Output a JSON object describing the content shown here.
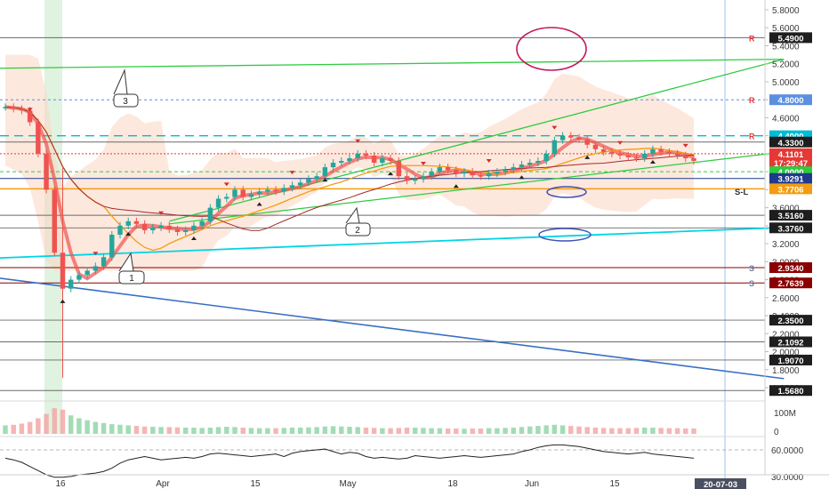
{
  "chart_data": [
    {
      "type": "candlestick",
      "price_axis_ticks": [
        "5.8000",
        "5.6000",
        "5.4000",
        "5.2000",
        "5.0000",
        "4.8000",
        "4.6000",
        "4.4000",
        "4.2000",
        "4.0000",
        "3.8000",
        "3.6000",
        "3.4000",
        "3.2000",
        "3.0000",
        "2.8000",
        "2.6000",
        "2.4000",
        "2.2000",
        "2.0000",
        "1.8000",
        "1.6000"
      ],
      "ylim": [
        1.55,
        5.9
      ],
      "date_axis_ticks": [
        "16",
        "Apr",
        "15",
        "May",
        "18",
        "Jun",
        "15"
      ],
      "date_axis_cursor_label": "20-07-03",
      "price_tags": [
        {
          "label": "5.4900",
          "value": 5.49,
          "color": "#1e1e1e",
          "marker": "R",
          "marker_color": "#e53935"
        },
        {
          "label": "4.8000",
          "value": 4.8,
          "color": "#5b8fe0",
          "marker": "R",
          "marker_color": "#e53935"
        },
        {
          "label": "4.4000",
          "value": 4.4,
          "color": "#00bcd4",
          "marker": "R",
          "marker_color": "#e53935"
        },
        {
          "label": "4.3300",
          "value": 4.33,
          "color": "#1e1e1e"
        },
        {
          "label": "4.1101",
          "value": 4.2,
          "color": "#e53935"
        },
        {
          "label": "17:29:47",
          "value": 4.1,
          "color": "#e53935"
        },
        {
          "label": "4.0000",
          "value": 4.0,
          "color": "#2ecc40"
        },
        {
          "label": "3.9291",
          "value": 3.925,
          "color": "#1e3a8a"
        },
        {
          "label": "3.7706",
          "value": 3.81,
          "color": "#f39c12"
        },
        {
          "label": "3.5160",
          "value": 3.516,
          "color": "#1e1e1e"
        },
        {
          "label": "3.3760",
          "value": 3.376,
          "color": "#1e1e1e"
        },
        {
          "label": "2.9340",
          "value": 2.934,
          "color": "#8b0000",
          "marker": "S",
          "marker_color": "#6b7fa0"
        },
        {
          "label": "2.7639",
          "value": 2.764,
          "color": "#8b0000",
          "marker": "S",
          "marker_color": "#6b7fa0"
        },
        {
          "label": "2.3500",
          "value": 2.35,
          "color": "#1e1e1e"
        },
        {
          "label": "2.1092",
          "value": 2.109,
          "color": "#1e1e1e"
        },
        {
          "label": "1.9070",
          "value": 1.907,
          "color": "#1e1e1e"
        },
        {
          "label": "1.5680",
          "value": 1.568,
          "color": "#1e1e1e"
        }
      ],
      "sl_label": "S-L",
      "callouts": [
        "3",
        "2",
        "1"
      ],
      "series": [
        {
          "name": "",
          "close": [
            4.72,
            4.7,
            4.68,
            4.55,
            4.2,
            3.8,
            3.1,
            2.7,
            2.8,
            2.85,
            2.9,
            2.95,
            3.05,
            3.3,
            3.4,
            3.45,
            3.42,
            3.35,
            3.38,
            3.4,
            3.36,
            3.33,
            3.35,
            3.4,
            3.45,
            3.6,
            3.7,
            3.72,
            3.8,
            3.72,
            3.75,
            3.78,
            3.8,
            3.78,
            3.82,
            3.85,
            3.88,
            3.92,
            3.95,
            4.05,
            4.1,
            4.12,
            4.15,
            4.2,
            4.18,
            4.1,
            4.15,
            4.12,
            3.95,
            3.9,
            3.92,
            3.95,
            4.0,
            4.05,
            4.02,
            3.98,
            4.0,
            3.96,
            3.95,
            3.98,
            4.0,
            4.02,
            4.05,
            4.08,
            4.1,
            4.12,
            4.2,
            4.35,
            4.4,
            4.38,
            4.36,
            4.3,
            4.25,
            4.22,
            4.2,
            4.18,
            4.16,
            4.15,
            4.2,
            4.25,
            4.22,
            4.2,
            4.18,
            4.15,
            4.12
          ]
        }
      ]
    },
    {
      "type": "bar",
      "panel": "volume",
      "axis_labels": [
        "100M",
        "0"
      ],
      "series": [
        {
          "name": "",
          "values": [
            0.3,
            0.32,
            0.36,
            0.42,
            0.55,
            0.7,
            0.9,
            0.85,
            0.65,
            0.55,
            0.48,
            0.42,
            0.38,
            0.34,
            0.32,
            0.3,
            0.28,
            0.26,
            0.25,
            0.24,
            0.24,
            0.23,
            0.22,
            0.22,
            0.21,
            0.22,
            0.24,
            0.25,
            0.24,
            0.22,
            0.21,
            0.2,
            0.2,
            0.2,
            0.21,
            0.22,
            0.22,
            0.23,
            0.24,
            0.26,
            0.27,
            0.26,
            0.25,
            0.24,
            0.22,
            0.21,
            0.2,
            0.2,
            0.21,
            0.22,
            0.22,
            0.21,
            0.2,
            0.2,
            0.19,
            0.19,
            0.18,
            0.19,
            0.19,
            0.2,
            0.2,
            0.21,
            0.22,
            0.24,
            0.26,
            0.28,
            0.3,
            0.32,
            0.3,
            0.28,
            0.26,
            0.24,
            0.22,
            0.21,
            0.2,
            0.2,
            0.2,
            0.21,
            0.22,
            0.22,
            0.21,
            0.2,
            0.2,
            0.19,
            0.19
          ]
        }
      ]
    },
    {
      "type": "line",
      "panel": "oscillator",
      "axis_labels": [
        "60.0000",
        "30.0000"
      ],
      "series": [
        {
          "name": "",
          "values": [
            50,
            48,
            45,
            40,
            35,
            30,
            27,
            27,
            28,
            30,
            31,
            32,
            34,
            38,
            44,
            48,
            50,
            52,
            50,
            48,
            49,
            50,
            51,
            50,
            52,
            55,
            56,
            55,
            54,
            53,
            52,
            53,
            54,
            55,
            52,
            56,
            58,
            59,
            60,
            61,
            58,
            55,
            57,
            56,
            52,
            50,
            51,
            50,
            49,
            50,
            53,
            52,
            51,
            50,
            51,
            52,
            53,
            52,
            51,
            52,
            53,
            54,
            55,
            58,
            60,
            63,
            65,
            66,
            66,
            65,
            64,
            62,
            60,
            58,
            57,
            56,
            55,
            56,
            57,
            55,
            54,
            53,
            52,
            51,
            50
          ]
        }
      ]
    }
  ],
  "colors": {
    "up": "#26a69a",
    "down": "#ef5350",
    "cyan_line": "#00d4e6",
    "blue_line": "#3a6fc4",
    "green_line": "#2ecc40",
    "orange_line": "#f39c12",
    "cloud": "#fbd6c2"
  }
}
